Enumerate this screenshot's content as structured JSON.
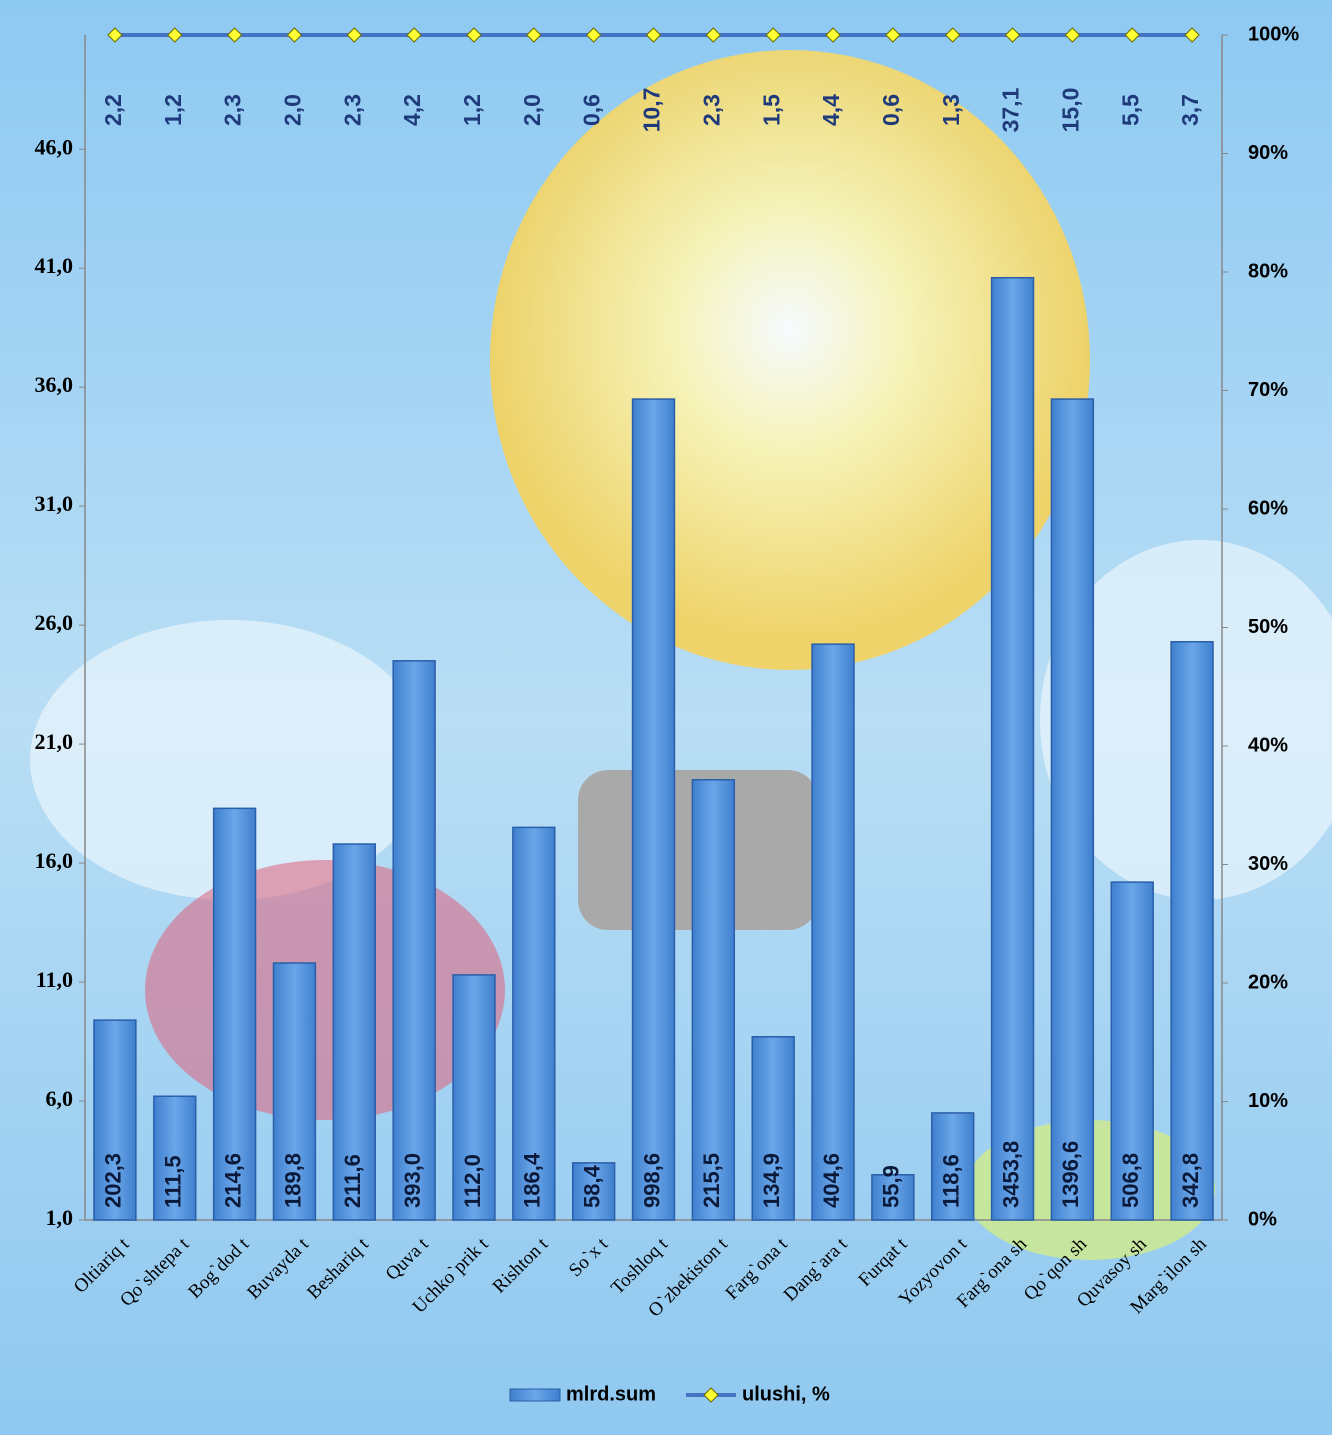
{
  "chart_data": {
    "type": "bar",
    "categories": [
      "Oltiariq t",
      "Qo`shtepa t",
      "Bog`dod t",
      "Buvayda t",
      "Beshariq t",
      "Quva t",
      "Uchko`prik t",
      "Rishton t",
      "So`x t",
      "Toshloq t",
      "O`zbekiston t",
      "Farg`ona t",
      "Dang`ara t",
      "Furqat t",
      "Yozyovon t",
      "Farg`ona sh",
      "Qo`qon sh",
      "Quvasoy sh",
      "Marg`ilon sh"
    ],
    "series": [
      {
        "name": "mlrd.sum",
        "color": "#4f8fdc",
        "values": [
          9.4,
          6.2,
          18.3,
          11.8,
          16.8,
          24.5,
          11.3,
          17.5,
          3.4,
          35.5,
          19.5,
          8.7,
          25.2,
          2.9,
          5.5,
          40.6,
          35.5,
          15.2,
          25.3
        ],
        "data_labels": [
          "202,3",
          "111,5",
          "214,6",
          "189,8",
          "211,6",
          "393,0",
          "112,0",
          "186,4",
          "58,4",
          "998,6",
          "215,5",
          "134,9",
          "404,6",
          "55,9",
          "118,6",
          "3453,8",
          "1396,6",
          "506,8",
          "342,8"
        ]
      },
      {
        "name": "ulushi, %",
        "color": "#4472c4",
        "marker_color": "#ffff33",
        "axis": "y2",
        "values": [
          100,
          100,
          100,
          100,
          100,
          100,
          100,
          100,
          100,
          100,
          100,
          100,
          100,
          100,
          100,
          100,
          100,
          100,
          100
        ],
        "data_labels": [
          "2,2",
          "1,2",
          "2,3",
          "2,0",
          "2,3",
          "4,2",
          "1,2",
          "2,0",
          "0,6",
          "10,7",
          "2,3",
          "1,5",
          "4,4",
          "0,6",
          "1,3",
          "37,1",
          "15,0",
          "5,5",
          "3,7"
        ]
      }
    ],
    "ylim": [
      1,
      50.8
    ],
    "yticks": [
      {
        "value": 1,
        "label": "1,0"
      },
      {
        "value": 6,
        "label": "6,0"
      },
      {
        "value": 11,
        "label": "11,0"
      },
      {
        "value": 16,
        "label": "16,0"
      },
      {
        "value": 21,
        "label": "21,0"
      },
      {
        "value": 26,
        "label": "26,0"
      },
      {
        "value": 31,
        "label": "31,0"
      },
      {
        "value": 36,
        "label": "36,0"
      },
      {
        "value": 41,
        "label": "41,0"
      },
      {
        "value": 46,
        "label": "46,0"
      }
    ],
    "y2lim": [
      0,
      100
    ],
    "y2ticks": [
      {
        "value": 0,
        "label": "0%"
      },
      {
        "value": 10,
        "label": "10%"
      },
      {
        "value": 20,
        "label": "20%"
      },
      {
        "value": 30,
        "label": "30%"
      },
      {
        "value": 40,
        "label": "40%"
      },
      {
        "value": 50,
        "label": "50%"
      },
      {
        "value": 60,
        "label": "60%"
      },
      {
        "value": 70,
        "label": "70%"
      },
      {
        "value": 80,
        "label": "80%"
      },
      {
        "value": 90,
        "label": "90%"
      },
      {
        "value": 100,
        "label": "100%"
      }
    ],
    "legend": "bottom"
  }
}
